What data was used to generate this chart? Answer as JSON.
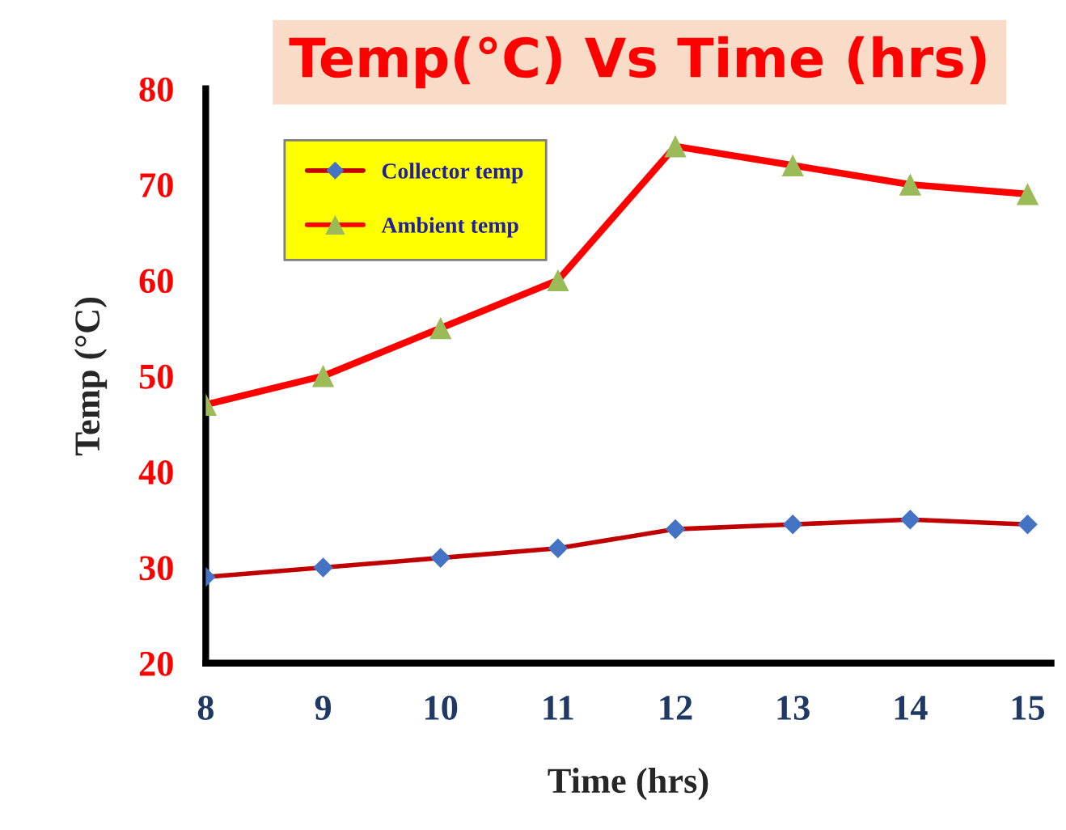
{
  "chart_data": {
    "type": "line",
    "title": "Temp(°C) Vs Time (hrs)",
    "xlabel": "Time (hrs)",
    "ylabel": "Temp (°C)",
    "x": [
      8,
      9,
      10,
      11,
      12,
      13,
      14,
      15
    ],
    "series": [
      {
        "name": "Collector temp",
        "color": "#c00000",
        "marker": "diamond",
        "colors": [
          "#4472c4",
          "#4472c4",
          "#4472c4",
          "#4472c4",
          "#4472c4",
          "#4472c4",
          "#4472c4",
          "#4472c4"
        ],
        "values": [
          29,
          30,
          31,
          32,
          34,
          34.5,
          35,
          34.5
        ]
      },
      {
        "name": "Ambient temp",
        "color": "#ff0000",
        "marker": "triangle",
        "colors": [
          "#9bbb59",
          "#9bbb59",
          "#9bbb59",
          "#9bbb59",
          "#9bbb59",
          "#9bbb59",
          "#9bbb59",
          "#9bbb59"
        ],
        "values": [
          47,
          50,
          55,
          60,
          74,
          72,
          70,
          69
        ]
      }
    ],
    "xlim": [
      8,
      15.2
    ],
    "ylim": [
      20,
      80
    ],
    "xticks": [
      8,
      9,
      10,
      11,
      12,
      13,
      14,
      15
    ],
    "yticks": [
      20,
      30,
      40,
      50,
      60,
      70,
      80
    ],
    "grid": false,
    "legend": "top left",
    "line_style": "solid"
  }
}
